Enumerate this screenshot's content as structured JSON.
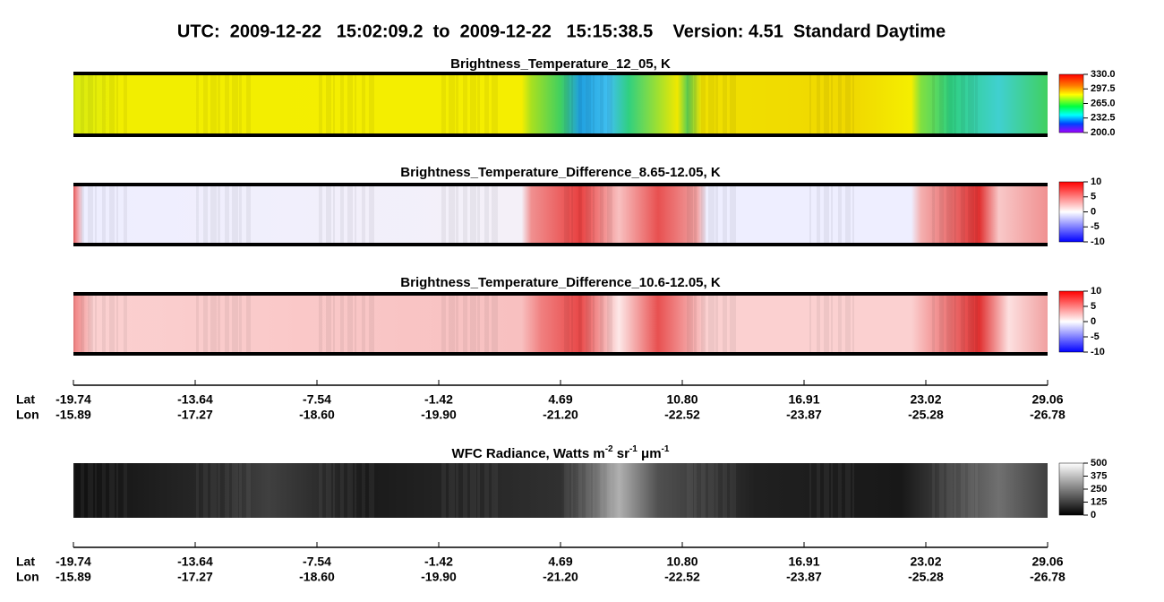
{
  "header": {
    "title": "UTC:  2009-12-22   15:02:09.2  to  2009-12-22   15:15:38.5    Version: 4.51  Standard Daytime"
  },
  "panels": [
    {
      "title": [
        "Brightness_Temperature_12_05, K"
      ],
      "colorbar": [
        "330.0",
        "297.5",
        "265.0",
        "232.5",
        "200.0"
      ]
    },
    {
      "title": [
        "Brightness_Temperature_Difference_8.65-12.05, K"
      ],
      "colorbar": [
        "10",
        "5",
        "0",
        "-5",
        "-10"
      ]
    },
    {
      "title": [
        "Brightness_Temperature_Difference_10.6-12.05, K"
      ],
      "colorbar": [
        "10",
        "5",
        "0",
        "-5",
        "-10"
      ]
    },
    {
      "title": [
        "WFC Radiance, Watts m",
        "-2",
        " sr",
        "-1",
        " μm",
        "-1"
      ],
      "colorbar": [
        "500",
        "375",
        "250",
        "125",
        "0"
      ]
    }
  ],
  "axes": [
    {
      "lat_label": "Lat",
      "lon_label": "Lon",
      "lat": [
        "-19.74",
        "-13.64",
        "-7.54",
        "-1.42",
        "4.69",
        "10.80",
        "16.91",
        "23.02",
        "29.06"
      ],
      "lon": [
        "-15.89",
        "-17.27",
        "-18.60",
        "-19.90",
        "-21.20",
        "-22.52",
        "-23.87",
        "-25.28",
        "-26.78"
      ]
    },
    {
      "lat_label": "Lat",
      "lon_label": "Lon",
      "lat": [
        "-19.74",
        "-13.64",
        "-7.54",
        "-1.42",
        "4.69",
        "10.80",
        "16.91",
        "23.02",
        "29.06"
      ],
      "lon": [
        "-15.89",
        "-17.27",
        "-18.60",
        "-19.90",
        "-21.20",
        "-22.52",
        "-23.87",
        "-25.28",
        "-26.78"
      ]
    }
  ]
}
